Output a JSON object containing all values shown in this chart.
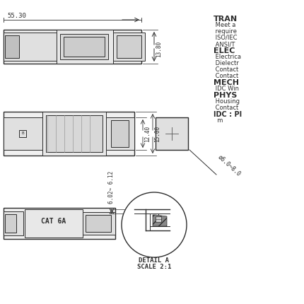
{
  "bg_color": "#ffffff",
  "line_color": "#2d2d2d",
  "gray_fill": "#c8c8c8",
  "dark_gray": "#505050",
  "light_gray": "#a0a0a0",
  "hatch_color": "#404040",
  "dim_55_30": "55.30",
  "dim_13_80": "13.80",
  "dim_12_40": "12.40",
  "dim_15_00": "15.00",
  "dim_dia": "ø6.0~8.0",
  "dim_6_02_6_12": "6.02~ 6.12",
  "detail_a": "DETAIL A",
  "scale": "SCALE 2:1",
  "cat6a_text": "CAT 6A",
  "right_texts": [
    [
      "TRAN",
      8,
      true
    ],
    [
      " Meet a",
      6,
      false
    ],
    [
      " require",
      6,
      false
    ],
    [
      " ISO/IEC",
      6,
      false
    ],
    [
      " ANSI/T",
      6,
      false
    ],
    [
      "ELEC",
      8,
      true
    ],
    [
      " Electrica",
      6,
      false
    ],
    [
      " Dielectr",
      6,
      false
    ],
    [
      " Contact",
      6,
      false
    ],
    [
      " Contact",
      6,
      false
    ],
    [
      "MECH",
      8,
      true
    ],
    [
      " IDC Win",
      6,
      false
    ],
    [
      "PHYS",
      8,
      true
    ],
    [
      " Housing",
      6,
      false
    ],
    [
      " Contact",
      6,
      false
    ],
    [
      "IDC : PI",
      7,
      true
    ],
    [
      "  m",
      6,
      false
    ]
  ]
}
